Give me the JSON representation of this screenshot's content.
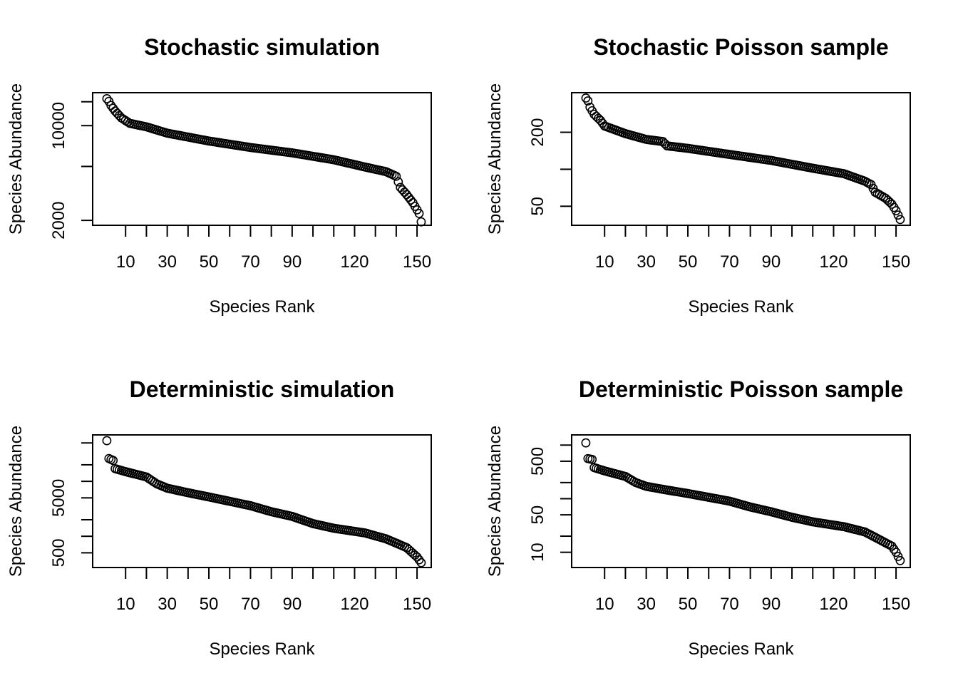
{
  "chart_data": [
    {
      "type": "scatter",
      "title": "Stochastic simulation",
      "xlabel": "Species Rank",
      "ylabel": "Species Abundance",
      "log_y": true,
      "xlim": [
        0,
        151
      ],
      "xticks": [
        10,
        20,
        30,
        40,
        50,
        60,
        70,
        80,
        90,
        100,
        110,
        120,
        130,
        140,
        150
      ],
      "xtick_labels": [
        "10",
        "",
        "30",
        "",
        "50",
        "",
        "70",
        "",
        "90",
        "",
        "",
        "120",
        "",
        "",
        "150"
      ],
      "ylim": [
        1840,
        17500
      ],
      "yticks": [
        2000,
        5000,
        10000,
        15000
      ],
      "ytick_labels": [
        "2000",
        "",
        "10000",
        ""
      ],
      "anchors": [
        [
          1,
          15800
        ],
        [
          2,
          15100
        ],
        [
          3,
          14100
        ],
        [
          5,
          12800
        ],
        [
          8,
          11400
        ],
        [
          12,
          10400
        ],
        [
          20,
          9800
        ],
        [
          30,
          8800
        ],
        [
          50,
          7700
        ],
        [
          70,
          6900
        ],
        [
          90,
          6300
        ],
        [
          110,
          5600
        ],
        [
          125,
          4950
        ],
        [
          135,
          4580
        ],
        [
          140,
          4230
        ],
        [
          142,
          3500
        ],
        [
          145,
          3100
        ],
        [
          148,
          2700
        ],
        [
          151,
          2250
        ],
        [
          152,
          1950
        ]
      ],
      "n_points": 152
    },
    {
      "type": "scatter",
      "title": "Stochastic Poisson sample",
      "xlabel": "Species Rank",
      "ylabel": "Species Abundance",
      "log_y": true,
      "xlim": [
        0,
        151
      ],
      "xticks": [
        10,
        20,
        30,
        40,
        50,
        60,
        70,
        80,
        90,
        100,
        110,
        120,
        130,
        140,
        150
      ],
      "xtick_labels": [
        "10",
        "",
        "30",
        "",
        "50",
        "",
        "70",
        "",
        "90",
        "",
        "",
        "120",
        "",
        "",
        "150"
      ],
      "ylim": [
        35,
        420
      ],
      "yticks": [
        50,
        100,
        200
      ],
      "ytick_labels": [
        "50",
        "",
        "200"
      ],
      "anchors": [
        [
          1,
          380
        ],
        [
          2,
          360
        ],
        [
          3,
          320
        ],
        [
          5,
          280
        ],
        [
          8,
          250
        ],
        [
          10,
          225
        ],
        [
          20,
          195
        ],
        [
          30,
          175
        ],
        [
          38,
          168
        ],
        [
          40,
          155
        ],
        [
          50,
          148
        ],
        [
          70,
          132
        ],
        [
          90,
          118
        ],
        [
          110,
          102
        ],
        [
          125,
          92
        ],
        [
          135,
          80
        ],
        [
          138,
          75
        ],
        [
          140,
          65
        ],
        [
          145,
          58
        ],
        [
          148,
          52
        ],
        [
          150,
          46
        ],
        [
          152,
          39
        ]
      ],
      "n_points": 152
    },
    {
      "type": "scatter",
      "title": "Deterministic simulation",
      "xlabel": "Species Rank",
      "ylabel": "Species Abundance",
      "log_y": true,
      "xlim": [
        0,
        151
      ],
      "xticks": [
        10,
        20,
        30,
        40,
        50,
        60,
        70,
        80,
        90,
        100,
        110,
        120,
        130,
        140,
        150
      ],
      "xtick_labels": [
        "10",
        "",
        "30",
        "",
        "50",
        "",
        "70",
        "",
        "90",
        "",
        "",
        "120",
        "",
        "",
        "150"
      ],
      "ylim": [
        270,
        70000
      ],
      "yticks": [
        500,
        1000,
        2000,
        5000,
        10000,
        20000,
        50000
      ],
      "ytick_labels": [
        "500",
        "",
        "",
        "5000",
        "",
        "",
        ""
      ],
      "anchors": [
        [
          1,
          55000
        ],
        [
          2,
          26000
        ],
        [
          4,
          24000
        ],
        [
          5,
          17000
        ],
        [
          10,
          15000
        ],
        [
          20,
          12000
        ],
        [
          25,
          9000
        ],
        [
          30,
          7500
        ],
        [
          40,
          6200
        ],
        [
          50,
          5200
        ],
        [
          70,
          3600
        ],
        [
          80,
          2800
        ],
        [
          90,
          2300
        ],
        [
          100,
          1700
        ],
        [
          110,
          1400
        ],
        [
          125,
          1150
        ],
        [
          135,
          900
        ],
        [
          140,
          750
        ],
        [
          145,
          620
        ],
        [
          150,
          420
        ],
        [
          152,
          330
        ]
      ],
      "n_points": 152
    },
    {
      "type": "scatter",
      "title": "Deterministic Poisson sample",
      "xlabel": "Species Rank",
      "ylabel": "Species Abundance",
      "log_y": true,
      "xlim": [
        0,
        151
      ],
      "xticks": [
        10,
        20,
        30,
        40,
        50,
        60,
        70,
        80,
        90,
        100,
        110,
        120,
        130,
        140,
        150
      ],
      "xtick_labels": [
        "10",
        "",
        "30",
        "",
        "50",
        "",
        "70",
        "",
        "90",
        "",
        "",
        "120",
        "",
        "",
        "150"
      ],
      "ylim": [
        5.2,
        1550
      ],
      "yticks": [
        10,
        20,
        50,
        100,
        200,
        500,
        1000
      ],
      "ytick_labels": [
        "10",
        "",
        "50",
        "",
        "",
        "500",
        ""
      ],
      "anchors": [
        [
          1,
          1100
        ],
        [
          2,
          560
        ],
        [
          4,
          540
        ],
        [
          5,
          380
        ],
        [
          10,
          330
        ],
        [
          20,
          260
        ],
        [
          25,
          200
        ],
        [
          30,
          170
        ],
        [
          40,
          145
        ],
        [
          50,
          125
        ],
        [
          70,
          90
        ],
        [
          80,
          70
        ],
        [
          90,
          57
        ],
        [
          100,
          45
        ],
        [
          110,
          37
        ],
        [
          125,
          30
        ],
        [
          135,
          24
        ],
        [
          140,
          19
        ],
        [
          145,
          15
        ],
        [
          148,
          13
        ],
        [
          150,
          10
        ],
        [
          152,
          7
        ]
      ],
      "n_points": 152
    }
  ]
}
